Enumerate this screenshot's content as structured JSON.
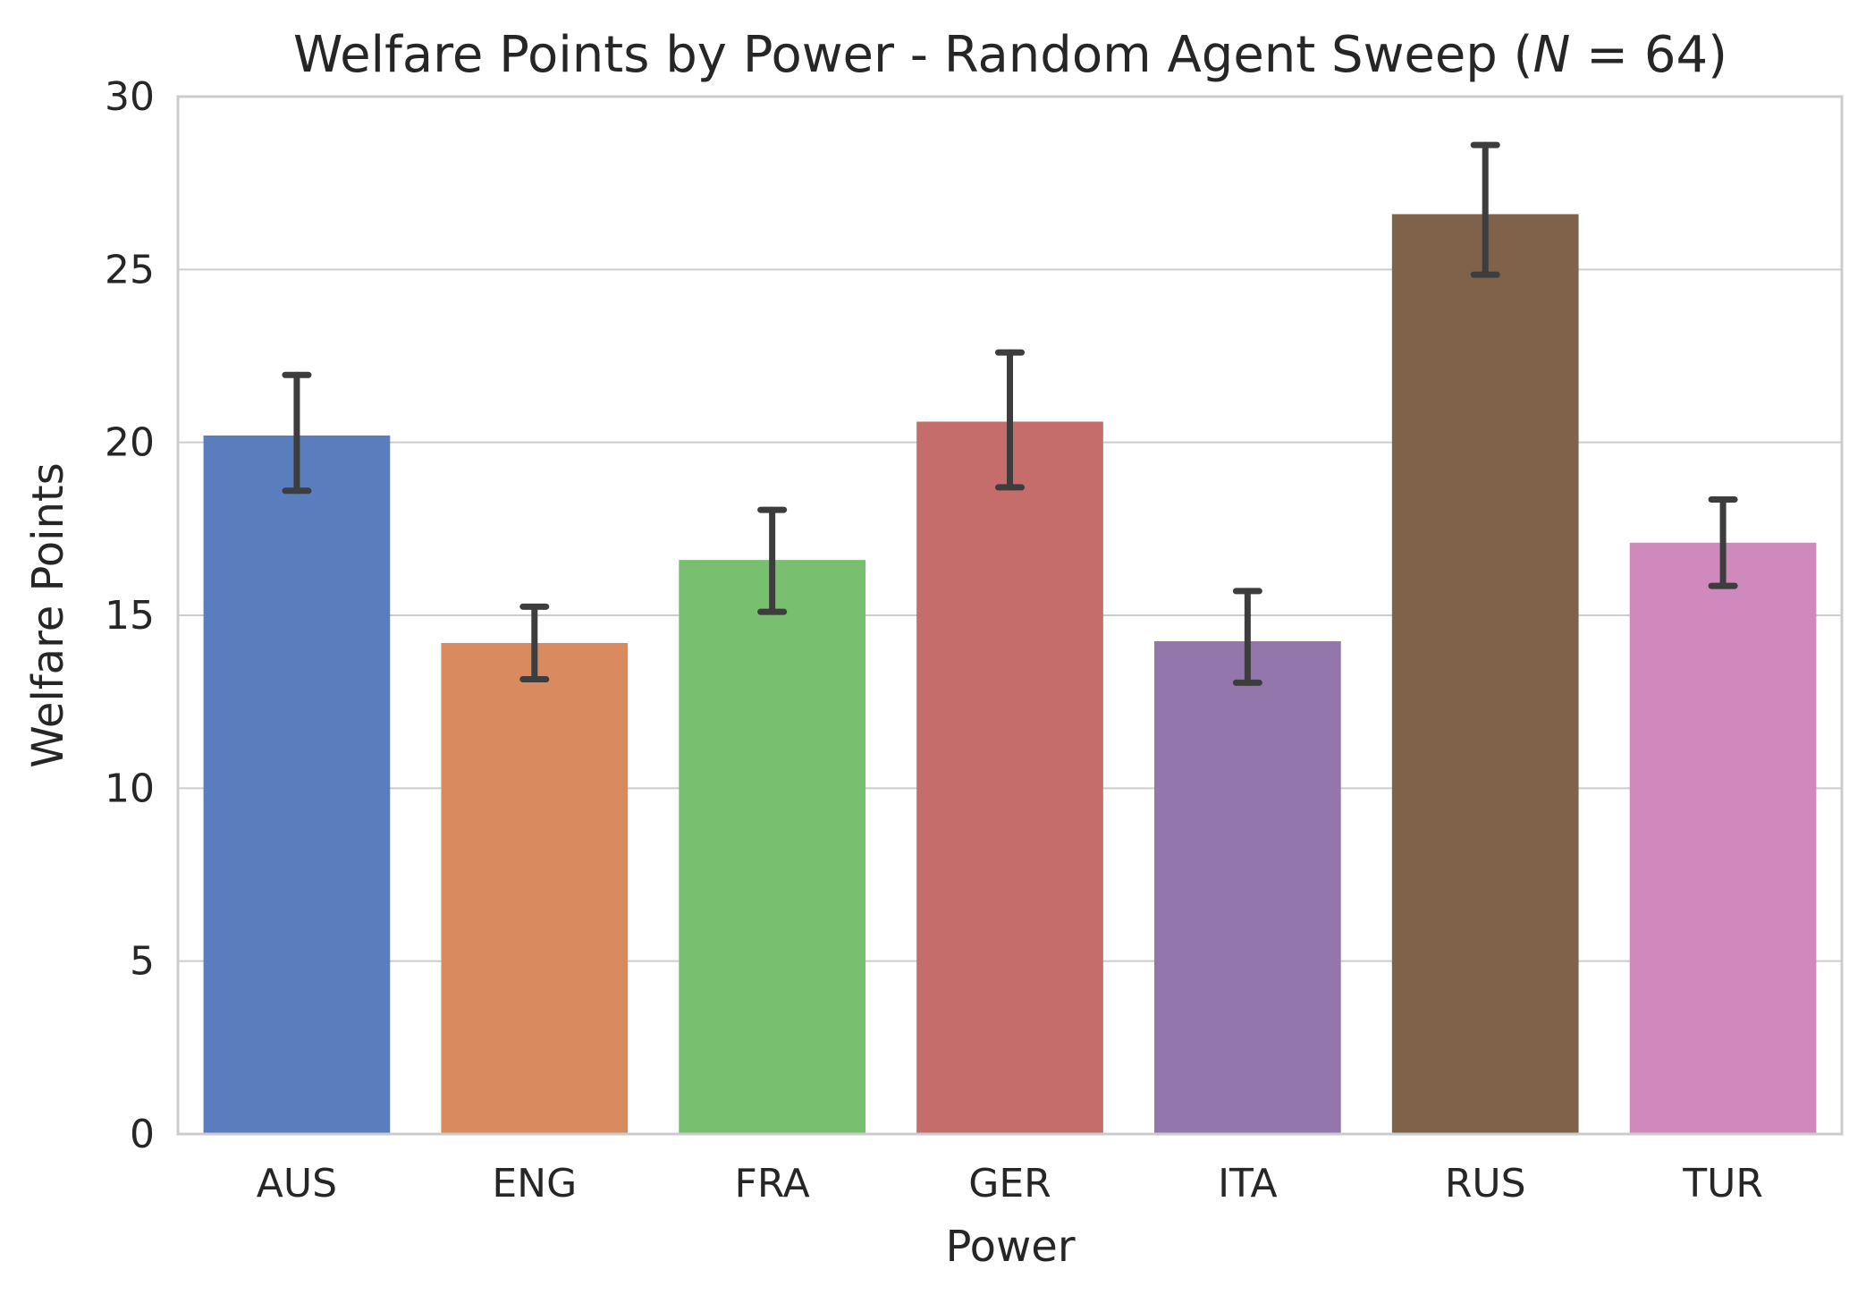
{
  "chart_data": {
    "type": "bar",
    "title": "Welfare Points by Power - Random Agent Sweep (N = 64)",
    "title_parts": {
      "before": "Welfare Points by Power - Random Agent Sweep (",
      "italic": "N",
      "after": " = 64)"
    },
    "xlabel": "Power",
    "ylabel": "Welfare Points",
    "categories": [
      "AUS",
      "ENG",
      "FRA",
      "GER",
      "ITA",
      "RUS",
      "TUR"
    ],
    "values": [
      20.2,
      14.2,
      16.6,
      20.6,
      14.25,
      26.6,
      17.1
    ],
    "error_bars": [
      {
        "low": 18.6,
        "high": 21.95
      },
      {
        "low": 13.15,
        "high": 15.25
      },
      {
        "low": 15.1,
        "high": 18.05
      },
      {
        "low": 18.7,
        "high": 22.6
      },
      {
        "low": 13.05,
        "high": 15.7
      },
      {
        "low": 24.85,
        "high": 28.6
      },
      {
        "low": 15.85,
        "high": 18.35
      }
    ],
    "colors": [
      "#5a7dbd",
      "#d98a5f",
      "#78c070",
      "#c56d6b",
      "#9376ab",
      "#80624a",
      "#d089bc"
    ],
    "error_color": "#3d3d3d",
    "ylim": [
      0,
      30
    ],
    "yticks": [
      0,
      5,
      10,
      15,
      20,
      25,
      30
    ],
    "grid": "horizontal"
  }
}
